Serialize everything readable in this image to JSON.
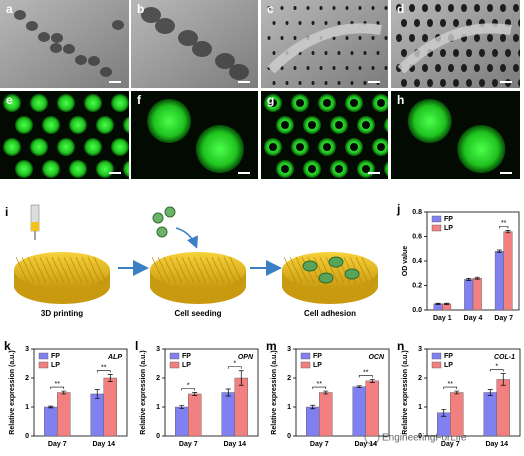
{
  "images": [
    {
      "label": "a"
    },
    {
      "label": "b"
    },
    {
      "label": "c"
    },
    {
      "label": "d"
    },
    {
      "label": "e"
    },
    {
      "label": "f"
    },
    {
      "label": "g"
    },
    {
      "label": "h"
    }
  ],
  "schematic": {
    "label": "i",
    "steps": [
      "3D printing",
      "Cell seeding",
      "Cell adhesion"
    ]
  },
  "watermark": "EngineeringForLife",
  "chart_data": [
    {
      "type": "bar",
      "label": "j",
      "y_label": "OD value",
      "categories": [
        "Day 1",
        "Day 4",
        "Day 7"
      ],
      "series": [
        {
          "name": "FP",
          "color": "#8080f0",
          "values": [
            0.05,
            0.25,
            0.48
          ],
          "errors": [
            0.005,
            0.008,
            0.01
          ]
        },
        {
          "name": "LP",
          "color": "#f28080",
          "values": [
            0.05,
            0.26,
            0.64
          ],
          "errors": [
            0.005,
            0.008,
            0.01
          ]
        }
      ],
      "significance": [
        null,
        null,
        "**"
      ],
      "ylim": [
        0,
        0.8
      ],
      "yticks": [
        {
          "value": 0,
          "label": "0.0"
        },
        {
          "value": 0.2,
          "label": "0.2"
        },
        {
          "value": 0.4,
          "label": "0.4"
        },
        {
          "value": 0.6,
          "label": "0.6"
        },
        {
          "value": 0.8,
          "label": "0.8"
        }
      ]
    },
    {
      "type": "bar",
      "label": "k",
      "annotation": "ALP",
      "y_label": "Relative expression (a.u.)",
      "categories": [
        "Day 7",
        "Day 14"
      ],
      "series": [
        {
          "name": "FP",
          "color": "#8080f0",
          "values": [
            1.0,
            1.45
          ],
          "errors": [
            0.03,
            0.15
          ]
        },
        {
          "name": "LP",
          "color": "#f28080",
          "values": [
            1.5,
            2.0
          ],
          "errors": [
            0.05,
            0.12
          ]
        }
      ],
      "significance": [
        "**",
        "**"
      ],
      "ylim": [
        0,
        3
      ],
      "yticks": [
        0,
        1,
        2,
        3
      ]
    },
    {
      "type": "bar",
      "label": "l",
      "annotation": "OPN",
      "y_label": "Relative expression (a.u.)",
      "categories": [
        "Day 7",
        "Day 14"
      ],
      "series": [
        {
          "name": "FP",
          "color": "#8080f0",
          "values": [
            1.0,
            1.5
          ],
          "errors": [
            0.05,
            0.12
          ]
        },
        {
          "name": "LP",
          "color": "#f28080",
          "values": [
            1.45,
            2.0
          ],
          "errors": [
            0.05,
            0.25
          ]
        }
      ],
      "significance": [
        "*",
        "*"
      ],
      "ylim": [
        0,
        3
      ],
      "yticks": [
        0,
        1,
        2,
        3
      ]
    },
    {
      "type": "bar",
      "label": "m",
      "annotation": "OCN",
      "y_label": "Relative expression (a.u.)",
      "categories": [
        "Day 7",
        "Day 14"
      ],
      "series": [
        {
          "name": "FP",
          "color": "#8080f0",
          "values": [
            1.0,
            1.7
          ],
          "errors": [
            0.06,
            0.03
          ]
        },
        {
          "name": "LP",
          "color": "#f28080",
          "values": [
            1.5,
            1.9
          ],
          "errors": [
            0.05,
            0.05
          ]
        }
      ],
      "significance": [
        "**",
        "**"
      ],
      "ylim": [
        0,
        3
      ],
      "yticks": [
        0,
        1,
        2,
        3
      ]
    },
    {
      "type": "bar",
      "label": "n",
      "annotation": "COL-1",
      "y_label": "Relative expression (a.u.)",
      "categories": [
        "Day 7",
        "Day 14"
      ],
      "series": [
        {
          "name": "FP",
          "color": "#8080f0",
          "values": [
            0.8,
            1.5
          ],
          "errors": [
            0.12,
            0.1
          ]
        },
        {
          "name": "LP",
          "color": "#f28080",
          "values": [
            1.5,
            1.95
          ],
          "errors": [
            0.05,
            0.2
          ]
        }
      ],
      "significance": [
        "**",
        "*"
      ],
      "ylim": [
        0,
        3
      ],
      "yticks": [
        0,
        1,
        2,
        3
      ]
    }
  ]
}
